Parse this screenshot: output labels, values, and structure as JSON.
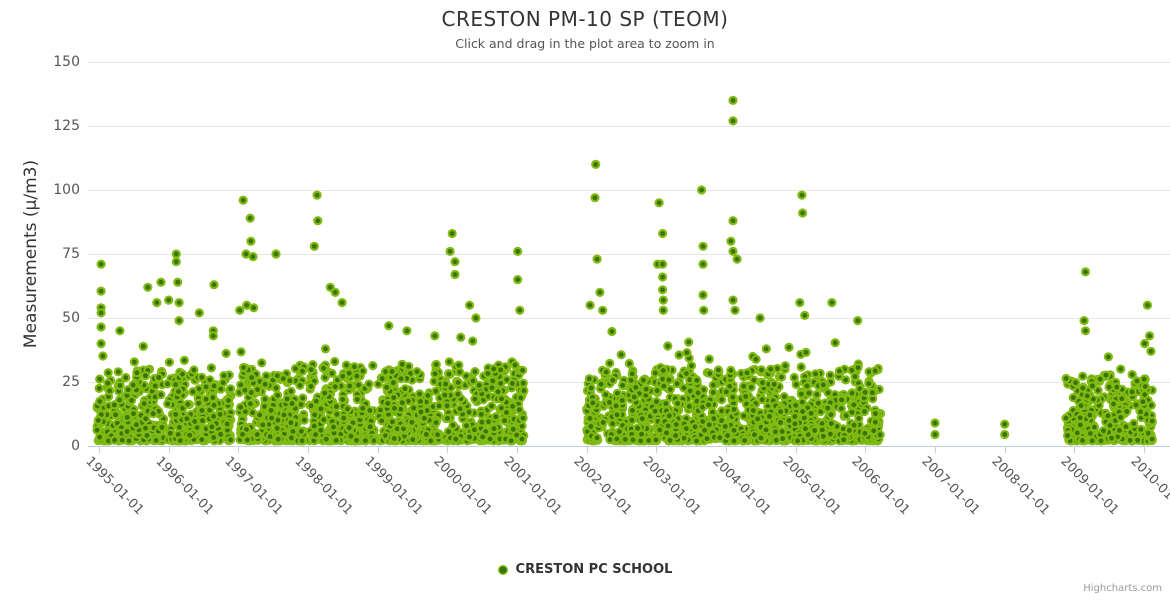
{
  "header": {
    "title": "CRESTON PM-10 SP (TEOM)",
    "subtitle": "Click and drag in the plot area to zoom in"
  },
  "legend": {
    "label": "CRESTON PC SCHOOL"
  },
  "credits": {
    "label": "Highcharts.com"
  },
  "colors": {
    "marker_core": "#3a7404",
    "marker_rim": "#82ba14",
    "gridline": "#e6e6e6",
    "axis_line": "#c0d0e0",
    "title_text": "#333333",
    "label_text": "#555555"
  },
  "chart_data": {
    "type": "scatter",
    "title": "CRESTON PM-10 SP (TEOM)",
    "subtitle": "Click and drag in the plot area to zoom in",
    "series_name": "CRESTON PC SCHOOL",
    "ylabel": "Measurements (μ/m3)",
    "xlabel": "",
    "grid": "horizontal-only",
    "legend_position": "bottom-center",
    "ylim": [
      0,
      150
    ],
    "xlim_decimal_years": [
      1994.842,
      2010.273
    ],
    "y_ticks": [
      0,
      25,
      50,
      75,
      100,
      125,
      150
    ],
    "x_tick_years": [
      1995,
      1996,
      1997,
      1998,
      1999,
      2000,
      2001,
      2002,
      2003,
      2004,
      2005,
      2006,
      2007,
      2008,
      2009,
      2010
    ],
    "x_tick_labels": [
      "1995-01-01",
      "1996-01-01",
      "1997-01-01",
      "1998-01-01",
      "1999-01-01",
      "2000-01-01",
      "2001-01-01",
      "2002-01-01",
      "2003-01-01",
      "2004-01-01",
      "2005-01-01",
      "2006-01-01",
      "2007-01-01",
      "2008-01-01",
      "2009-01-01",
      "2010-01-01"
    ],
    "dense_segments": [
      {
        "from": 1994.97,
        "to": 1995.93,
        "count": 250,
        "y_min": 2,
        "y_band": 28,
        "tail_chance": 0.1,
        "tail_extra": 14
      },
      {
        "from": 1995.98,
        "to": 1996.9,
        "count": 240,
        "y_min": 2,
        "y_band": 28,
        "tail_chance": 0.1,
        "tail_extra": 14
      },
      {
        "from": 1997.0,
        "to": 1997.95,
        "count": 260,
        "y_min": 2,
        "y_band": 30,
        "tail_chance": 0.1,
        "tail_extra": 15
      },
      {
        "from": 1998.02,
        "to": 1998.95,
        "count": 260,
        "y_min": 2,
        "y_band": 30,
        "tail_chance": 0.1,
        "tail_extra": 15
      },
      {
        "from": 1999.0,
        "to": 1999.92,
        "count": 250,
        "y_min": 2,
        "y_band": 30,
        "tail_chance": 0.1,
        "tail_extra": 14
      },
      {
        "from": 1999.95,
        "to": 2001.1,
        "count": 300,
        "y_min": 2,
        "y_band": 30,
        "tail_chance": 0.1,
        "tail_extra": 14
      },
      {
        "from": 2002.0,
        "to": 2002.95,
        "count": 260,
        "y_min": 2,
        "y_band": 28,
        "tail_chance": 0.12,
        "tail_extra": 16
      },
      {
        "from": 2002.98,
        "to": 2003.95,
        "count": 260,
        "y_min": 2,
        "y_band": 28,
        "tail_chance": 0.12,
        "tail_extra": 16
      },
      {
        "from": 2003.98,
        "to": 2004.95,
        "count": 260,
        "y_min": 2,
        "y_band": 28,
        "tail_chance": 0.12,
        "tail_extra": 16
      },
      {
        "from": 2004.98,
        "to": 2005.95,
        "count": 260,
        "y_min": 2,
        "y_band": 28,
        "tail_chance": 0.12,
        "tail_extra": 16
      },
      {
        "from": 2005.98,
        "to": 2006.22,
        "count": 70,
        "y_min": 2,
        "y_band": 30,
        "tail_chance": 0.05,
        "tail_extra": 8
      },
      {
        "from": 2008.88,
        "to": 2010.12,
        "count": 310,
        "y_min": 2,
        "y_band": 26,
        "tail_chance": 0.1,
        "tail_extra": 14
      }
    ],
    "outliers": [
      [
        1995.03,
        71
      ],
      [
        1995.03,
        60.5
      ],
      [
        1995.03,
        54
      ],
      [
        1995.03,
        52
      ],
      [
        1995.03,
        46.5
      ],
      [
        1995.03,
        40
      ],
      [
        1995.3,
        45
      ],
      [
        1995.7,
        62
      ],
      [
        1995.83,
        56
      ],
      [
        1995.89,
        64
      ],
      [
        1996.0,
        57
      ],
      [
        1996.11,
        75
      ],
      [
        1996.11,
        72
      ],
      [
        1996.13,
        64
      ],
      [
        1996.15,
        56
      ],
      [
        1996.15,
        49
      ],
      [
        1996.44,
        52
      ],
      [
        1996.64,
        45
      ],
      [
        1996.64,
        43
      ],
      [
        1996.65,
        63
      ],
      [
        1997.02,
        53
      ],
      [
        1997.07,
        96
      ],
      [
        1997.11,
        75
      ],
      [
        1997.12,
        55
      ],
      [
        1997.17,
        89
      ],
      [
        1997.18,
        80
      ],
      [
        1997.21,
        74
      ],
      [
        1997.22,
        54
      ],
      [
        1997.54,
        75
      ],
      [
        1998.09,
        78
      ],
      [
        1998.13,
        98
      ],
      [
        1998.14,
        88
      ],
      [
        1998.32,
        62
      ],
      [
        1998.39,
        60
      ],
      [
        1998.49,
        56
      ],
      [
        1999.16,
        47
      ],
      [
        1999.42,
        45
      ],
      [
        1999.82,
        43
      ],
      [
        2000.04,
        76
      ],
      [
        2000.07,
        83
      ],
      [
        2000.11,
        72
      ],
      [
        2000.11,
        67
      ],
      [
        2000.32,
        55
      ],
      [
        2000.41,
        50
      ],
      [
        2001.01,
        76
      ],
      [
        2001.01,
        65
      ],
      [
        2001.04,
        53
      ],
      [
        2002.05,
        55
      ],
      [
        2002.12,
        97
      ],
      [
        2002.13,
        110
      ],
      [
        2002.15,
        73
      ],
      [
        2002.19,
        60
      ],
      [
        2002.23,
        53
      ],
      [
        2003.02,
        71
      ],
      [
        2003.04,
        95
      ],
      [
        2003.09,
        83
      ],
      [
        2003.09,
        71
      ],
      [
        2003.09,
        66
      ],
      [
        2003.09,
        61
      ],
      [
        2003.1,
        57
      ],
      [
        2003.1,
        53
      ],
      [
        2003.65,
        100
      ],
      [
        2003.67,
        78
      ],
      [
        2003.67,
        71
      ],
      [
        2003.67,
        59
      ],
      [
        2003.68,
        53
      ],
      [
        2004.07,
        80
      ],
      [
        2004.1,
        135
      ],
      [
        2004.1,
        127
      ],
      [
        2004.1,
        88
      ],
      [
        2004.1,
        76
      ],
      [
        2004.16,
        73
      ],
      [
        2004.1,
        57
      ],
      [
        2004.13,
        53
      ],
      [
        2004.49,
        50
      ],
      [
        2005.06,
        56
      ],
      [
        2005.09,
        98
      ],
      [
        2005.1,
        91
      ],
      [
        2005.13,
        51
      ],
      [
        2005.52,
        56
      ],
      [
        2005.89,
        49
      ],
      [
        2007.0,
        9
      ],
      [
        2007.0,
        4.5
      ],
      [
        2008.0,
        8.5
      ],
      [
        2008.0,
        4.5
      ],
      [
        2009.14,
        49
      ],
      [
        2009.16,
        68
      ],
      [
        2009.16,
        45
      ],
      [
        2010.01,
        40
      ],
      [
        2010.05,
        55
      ],
      [
        2010.08,
        43
      ],
      [
        2010.1,
        37
      ]
    ]
  }
}
